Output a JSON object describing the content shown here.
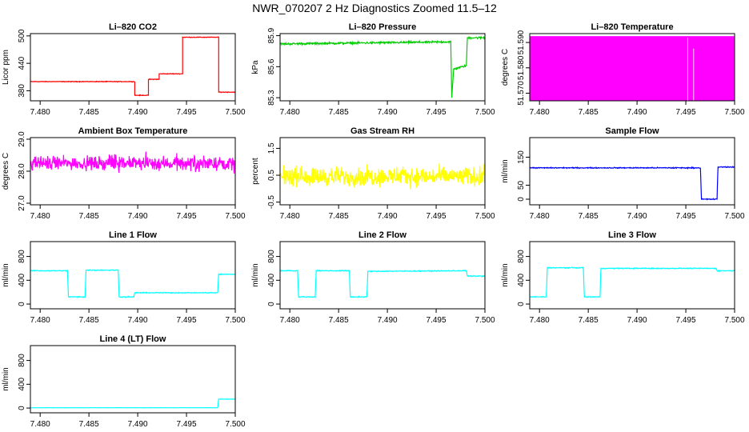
{
  "title": "NWR_070207  2 Hz Diagnostics Zoomed 11.5–12",
  "chart_data": [
    {
      "type": "line",
      "title": "Li–820 CO2",
      "ylabel": "Licor ppm",
      "xlim": [
        7.479,
        7.5
      ],
      "ylim": [
        358,
        505
      ],
      "yticks": [
        "380",
        "440",
        "500"
      ],
      "ytick_values": [
        380,
        440,
        500
      ],
      "xticks": [
        "7.480",
        "7.485",
        "7.490",
        "7.495",
        "7.500"
      ],
      "xtick_values": [
        7.48,
        7.485,
        7.49,
        7.495,
        7.5
      ],
      "color": "#ff0000",
      "noise": 0.6,
      "series": [
        {
          "x": [
            7.479,
            7.4897,
            7.4897,
            7.4911,
            7.4911,
            7.4922,
            7.4922,
            7.4946,
            7.4946,
            7.4983,
            7.4983,
            7.5
          ],
          "y": [
            400,
            400,
            370,
            370,
            405,
            405,
            417,
            417,
            497,
            497,
            377,
            377
          ]
        }
      ]
    },
    {
      "type": "line",
      "title": "Li–820 Pressure",
      "ylabel": "kPa",
      "xlim": [
        7.479,
        7.5
      ],
      "ylim": [
        85.27,
        85.92
      ],
      "yticks": [
        "85.3",
        "85.6",
        "85.9"
      ],
      "ytick_values": [
        85.3,
        85.6,
        85.9
      ],
      "xticks": [
        "7.480",
        "7.485",
        "7.490",
        "7.495",
        "7.500"
      ],
      "xtick_values": [
        7.48,
        7.485,
        7.49,
        7.495,
        7.5
      ],
      "color": "#00cc00",
      "noise": 0.008,
      "series": [
        {
          "x": [
            7.479,
            7.4965,
            7.4966,
            7.4968,
            7.4969,
            7.4981,
            7.4982,
            7.5
          ],
          "y": [
            85.82,
            85.84,
            85.3,
            85.58,
            85.58,
            85.61,
            85.88,
            85.88
          ]
        }
      ]
    },
    {
      "type": "line",
      "title": "Li–820 Temperature",
      "ylabel": "degrees C",
      "xlim": [
        7.479,
        7.5
      ],
      "ylim": [
        51.567,
        51.5935
      ],
      "yticks": [
        "51.570",
        "51.580",
        "51.590"
      ],
      "ytick_values": [
        51.57,
        51.58,
        51.59
      ],
      "xticks": [
        "7.480",
        "7.485",
        "7.490",
        "7.495",
        "7.500"
      ],
      "xtick_values": [
        7.48,
        7.485,
        7.49,
        7.495,
        7.5
      ],
      "color": "#ff00ff",
      "band": [
        51.567,
        51.5925
      ],
      "series": [
        {
          "x": [
            7.479,
            7.5
          ],
          "y": [
            51.5925,
            51.5925
          ]
        }
      ]
    },
    {
      "type": "line",
      "title": "Ambient Box Temperature",
      "ylabel": "degrees C",
      "xlim": [
        7.479,
        7.5
      ],
      "ylim": [
        26.95,
        29.05
      ],
      "yticks": [
        "27.0",
        "28.0",
        "29.0"
      ],
      "ytick_values": [
        27.0,
        28.0,
        29.0
      ],
      "xticks": [
        "7.480",
        "7.485",
        "7.490",
        "7.495",
        "7.500"
      ],
      "xtick_values": [
        7.48,
        7.485,
        7.49,
        7.495,
        7.5
      ],
      "color": "#ff00ff",
      "noise": 0.18,
      "series": [
        {
          "x": [
            7.479,
            7.5
          ],
          "y": [
            28.25,
            28.25
          ]
        }
      ]
    },
    {
      "type": "line",
      "title": "Gas Stream RH",
      "ylabel": "percent",
      "xlim": [
        7.479,
        7.5
      ],
      "ylim": [
        -0.6,
        1.9
      ],
      "yticks": [
        "-0.5",
        "0.5",
        "1.5"
      ],
      "ytick_values": [
        -0.5,
        0.5,
        1.5
      ],
      "xticks": [
        "7.480",
        "7.485",
        "7.490",
        "7.495",
        "7.500"
      ],
      "xtick_values": [
        7.48,
        7.485,
        7.49,
        7.495,
        7.5
      ],
      "color": "#ffff00",
      "noise": 0.3,
      "series": [
        {
          "x": [
            7.479,
            7.5
          ],
          "y": [
            0.45,
            0.45
          ]
        }
      ]
    },
    {
      "type": "line",
      "title": "Sample Flow",
      "ylabel": "ml/min",
      "xlim": [
        7.479,
        7.5
      ],
      "ylim": [
        -20,
        220
      ],
      "yticks": [
        "0",
        "50",
        "150"
      ],
      "ytick_values": [
        0,
        50,
        150
      ],
      "xticks": [
        "7.480",
        "7.485",
        "7.490",
        "7.495",
        "7.500"
      ],
      "xtick_values": [
        7.48,
        7.485,
        7.49,
        7.495,
        7.5
      ],
      "color": "#0000ff",
      "noise": 1.5,
      "series": [
        {
          "x": [
            7.479,
            7.4965,
            7.4966,
            7.4982,
            7.4983,
            7.5
          ],
          "y": [
            112,
            112,
            0,
            0,
            115,
            115
          ]
        }
      ]
    },
    {
      "type": "line",
      "title": "Line 1 Flow",
      "ylabel": "ml/min",
      "xlim": [
        7.479,
        7.5
      ],
      "ylim": [
        -80,
        1050
      ],
      "yticks": [
        "0",
        "400",
        "800"
      ],
      "ytick_values": [
        0,
        400,
        800
      ],
      "xticks": [
        "7.480",
        "7.485",
        "7.490",
        "7.495",
        "7.500"
      ],
      "xtick_values": [
        7.48,
        7.485,
        7.49,
        7.495,
        7.5
      ],
      "color": "#00ffff",
      "noise": 6,
      "series": [
        {
          "x": [
            7.479,
            7.4828,
            7.4829,
            7.4846,
            7.4847,
            7.488,
            7.4881,
            7.4896,
            7.4897,
            7.4982,
            7.4983,
            7.5
          ],
          "y": [
            560,
            560,
            120,
            120,
            570,
            570,
            120,
            120,
            190,
            190,
            500,
            500
          ]
        }
      ]
    },
    {
      "type": "line",
      "title": "Line 2 Flow",
      "ylabel": "ml/min",
      "xlim": [
        7.479,
        7.5
      ],
      "ylim": [
        -80,
        1050
      ],
      "yticks": [
        "0",
        "400",
        "800"
      ],
      "ytick_values": [
        0,
        400,
        800
      ],
      "xticks": [
        "7.480",
        "7.485",
        "7.490",
        "7.495",
        "7.500"
      ],
      "xtick_values": [
        7.48,
        7.485,
        7.49,
        7.495,
        7.5
      ],
      "color": "#00ffff",
      "noise": 6,
      "series": [
        {
          "x": [
            7.479,
            7.4808,
            7.4809,
            7.4826,
            7.4827,
            7.4861,
            7.4862,
            7.4879,
            7.488,
            7.4981,
            7.4982,
            7.5
          ],
          "y": [
            560,
            560,
            120,
            120,
            560,
            560,
            120,
            120,
            550,
            560,
            470,
            470
          ]
        }
      ]
    },
    {
      "type": "line",
      "title": "Line 3 Flow",
      "ylabel": "ml/min",
      "xlim": [
        7.479,
        7.5
      ],
      "ylim": [
        -80,
        1050
      ],
      "yticks": [
        "0",
        "400",
        "800"
      ],
      "ytick_values": [
        0,
        400,
        800
      ],
      "xticks": [
        "7.480",
        "7.485",
        "7.490",
        "7.495",
        "7.500"
      ],
      "xtick_values": [
        7.48,
        7.485,
        7.49,
        7.495,
        7.5
      ],
      "color": "#00ffff",
      "noise": 6,
      "series": [
        {
          "x": [
            7.479,
            7.4807,
            7.4808,
            7.4845,
            7.4846,
            7.4862,
            7.4863,
            7.4981,
            7.4982,
            7.5
          ],
          "y": [
            120,
            120,
            610,
            610,
            120,
            120,
            600,
            600,
            560,
            560
          ]
        }
      ]
    },
    {
      "type": "line",
      "title": "Line 4 (LT) Flow",
      "ylabel": "ml/min",
      "xlim": [
        7.479,
        7.5
      ],
      "ylim": [
        -80,
        1050
      ],
      "yticks": [
        "0",
        "400",
        "800"
      ],
      "ytick_values": [
        0,
        400,
        800
      ],
      "xticks": [
        "7.480",
        "7.485",
        "7.490",
        "7.495",
        "7.500"
      ],
      "xtick_values": [
        7.48,
        7.485,
        7.49,
        7.495,
        7.5
      ],
      "color": "#00ffff",
      "noise": 2,
      "series": [
        {
          "x": [
            7.479,
            7.4982,
            7.4983,
            7.5
          ],
          "y": [
            5,
            5,
            150,
            150
          ]
        }
      ]
    }
  ]
}
